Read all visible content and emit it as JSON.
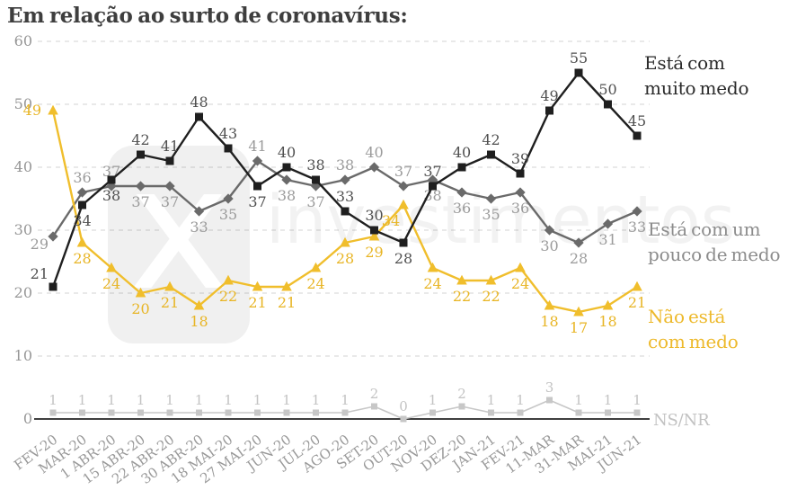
{
  "title": "Em relação ao surto de coronavírus:",
  "chart_data": {
    "type": "line",
    "title": "Em relação ao surto de coronavírus:",
    "categories": [
      "FEV-20",
      "MAR-20",
      "1 ABR-20",
      "15 ABR-20",
      "22 ABR-20",
      "30 ABR-20",
      "18 MAI-20",
      "27 MAI-20",
      "JUN-20",
      "JUL-20",
      "AGO-20",
      "SET-20",
      "OUT-20",
      "NOV-20",
      "DEZ-20",
      "JAN-21",
      "FEV-21",
      "11-MAR",
      "31-MAR",
      "MAI-21",
      "JUN-21"
    ],
    "ylim": [
      0,
      60
    ],
    "yticks": [
      0,
      10,
      20,
      30,
      40,
      50,
      60
    ],
    "grid": "horizontal-dashed",
    "legend_position": "right",
    "series": [
      {
        "name": "Está com muito medo",
        "marker": "square",
        "color": "#1f1f1f",
        "label_color": "#4f4f4f",
        "legend_color": "#2b2b2b",
        "values": [
          21,
          34,
          38,
          42,
          41,
          48,
          43,
          37,
          40,
          38,
          33,
          30,
          28,
          37,
          40,
          42,
          39,
          49,
          55,
          50,
          45
        ]
      },
      {
        "name": "Está com um pouco de medo",
        "marker": "diamond",
        "color": "#6a6a6a",
        "label_color": "#9b9b9b",
        "legend_color": "#8c8c8c",
        "values": [
          29,
          36,
          37,
          37,
          37,
          33,
          35,
          41,
          38,
          37,
          38,
          40,
          37,
          38,
          36,
          35,
          36,
          30,
          28,
          31,
          33
        ]
      },
      {
        "name": "Não está com medo",
        "marker": "triangle",
        "color": "#F0BE2C",
        "label_color": "#E8B525",
        "legend_color": "#EDB92B",
        "values": [
          49,
          28,
          24,
          20,
          21,
          18,
          22,
          21,
          21,
          24,
          28,
          29,
          34,
          24,
          22,
          22,
          24,
          18,
          17,
          18,
          21
        ]
      },
      {
        "name": "NS/NR",
        "marker": "square",
        "color": "#c7c7c7",
        "label_color": "#c3c3c3",
        "legend_color": "#c2c2c2",
        "values": [
          1,
          1,
          1,
          1,
          1,
          1,
          1,
          1,
          1,
          1,
          1,
          2,
          0,
          1,
          2,
          1,
          1,
          3,
          1,
          1,
          1
        ]
      }
    ],
    "watermark": {
      "logo": "x",
      "text": "investimentos"
    },
    "colors": {
      "gridline": "#dcdcdc",
      "axis_line": "#3f3f3f",
      "tick_label": "#969696"
    }
  }
}
